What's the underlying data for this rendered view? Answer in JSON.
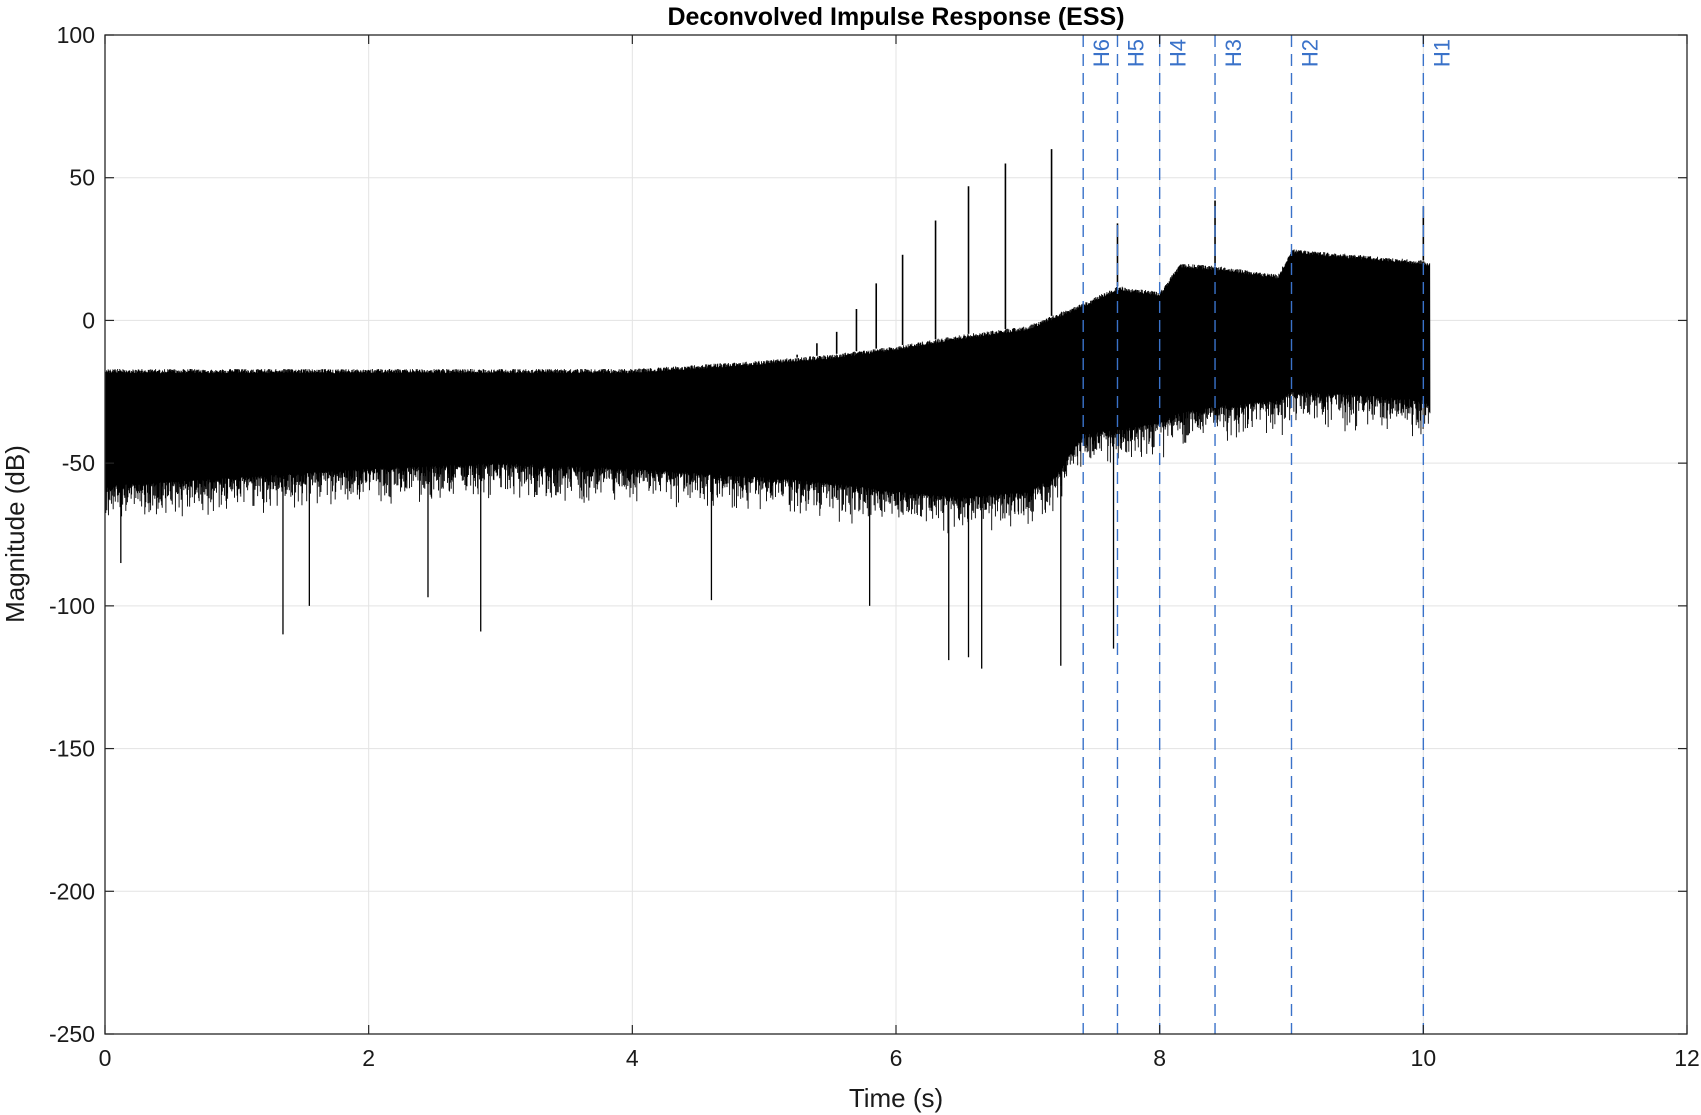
{
  "chart_data": {
    "type": "line",
    "title": "Deconvolved Impulse Response (ESS)",
    "xlabel": "Time (s)",
    "ylabel": "Magnitude (dB)",
    "xlim": [
      0,
      12
    ],
    "ylim": [
      -250,
      100
    ],
    "x_ticks": [
      0,
      2,
      4,
      6,
      8,
      10,
      12
    ],
    "y_ticks": [
      100,
      50,
      0,
      -50,
      -100,
      -150,
      -200,
      -250
    ],
    "grid": true,
    "line_color": "#000000",
    "marker_color": "#3a72c9",
    "envelope": {
      "time": [
        0.0,
        1.0,
        2.0,
        3.0,
        4.0,
        5.0,
        5.5,
        6.0,
        6.5,
        7.0,
        7.2,
        7.42,
        7.68,
        8.0,
        8.16,
        8.45,
        8.9,
        9.0,
        9.5,
        10.0,
        10.05
      ],
      "upper": [
        -17,
        -17,
        -17,
        -17,
        -17,
        -14,
        -12,
        -9,
        -5,
        -2,
        2,
        6,
        12,
        10,
        20,
        19,
        16,
        25,
        23,
        21,
        20
      ],
      "lower": [
        -58,
        -55,
        -52,
        -50,
        -52,
        -55,
        -57,
        -60,
        -62,
        -60,
        -55,
        -40,
        -38,
        -36,
        -32,
        -30,
        -28,
        -25,
        -26,
        -28,
        -30
      ]
    },
    "spikes": [
      {
        "t": 5.25,
        "db": -12
      },
      {
        "t": 5.4,
        "db": -8
      },
      {
        "t": 5.55,
        "db": -4
      },
      {
        "t": 5.7,
        "db": 4
      },
      {
        "t": 5.85,
        "db": 13
      },
      {
        "t": 6.05,
        "db": 23
      },
      {
        "t": 6.3,
        "db": 35
      },
      {
        "t": 6.55,
        "db": 47
      },
      {
        "t": 6.83,
        "db": 55
      },
      {
        "t": 7.18,
        "db": 60
      },
      {
        "t": 7.68,
        "db": 34
      },
      {
        "t": 8.42,
        "db": 42
      },
      {
        "t": 10.0,
        "db": 40
      }
    ],
    "dips": [
      {
        "t": 0.12,
        "db": -85
      },
      {
        "t": 1.35,
        "db": -110
      },
      {
        "t": 1.55,
        "db": -100
      },
      {
        "t": 2.45,
        "db": -97
      },
      {
        "t": 2.85,
        "db": -109
      },
      {
        "t": 4.6,
        "db": -98
      },
      {
        "t": 5.8,
        "db": -100
      },
      {
        "t": 6.4,
        "db": -119
      },
      {
        "t": 6.55,
        "db": -118
      },
      {
        "t": 6.65,
        "db": -122
      },
      {
        "t": 7.25,
        "db": -121
      },
      {
        "t": 7.65,
        "db": -115
      }
    ],
    "markers": [
      {
        "label": "H6",
        "x": 7.42
      },
      {
        "label": "H5",
        "x": 7.68
      },
      {
        "label": "H4",
        "x": 8.0
      },
      {
        "label": "H3",
        "x": 8.42
      },
      {
        "label": "H2",
        "x": 9.0
      },
      {
        "label": "H1",
        "x": 10.0
      }
    ]
  }
}
